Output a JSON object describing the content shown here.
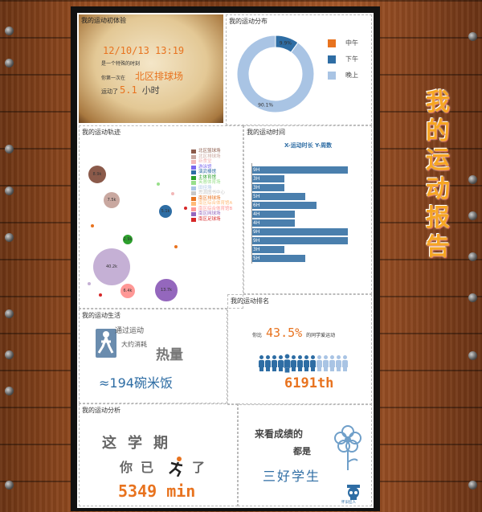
{
  "side_title": [
    "我",
    "的",
    "运",
    "动",
    "报",
    "告"
  ],
  "first": {
    "title": "我的运动初体验",
    "datetime": "12/10/13  13:19",
    "line1": "是一个特殊的时刻",
    "line2_pre": "你第一次在",
    "place": "北区排球场",
    "line3_pre": "运动了",
    "hours_value": "5.1",
    "hours_unit": "小时"
  },
  "distribution": {
    "title": "我的运动分布",
    "legend": [
      {
        "label": "中午",
        "color": "#e8731f"
      },
      {
        "label": "下午",
        "color": "#2e6da4"
      },
      {
        "label": "晚上",
        "color": "#a9c4e4"
      }
    ],
    "chart_data": {
      "type": "pie",
      "categories": [
        "中午",
        "下午",
        "晚上"
      ],
      "values": [
        0.0,
        9.9,
        90.1
      ],
      "slice_labels": [
        "",
        "9.9%",
        "90.1%"
      ],
      "colors": [
        "#e8731f",
        "#2e6da4",
        "#a9c4e4"
      ],
      "legend_position": "right"
    }
  },
  "track": {
    "title": "我的运动轨迹",
    "legend": [
      {
        "label": "北区篮球场",
        "color": "#8b5a4a"
      },
      {
        "label": "北区排球场",
        "color": "#c9a8a0"
      },
      {
        "label": "新食堂",
        "color": "#f2b7b7"
      },
      {
        "label": "游泳馆",
        "color": "#7b68ee"
      },
      {
        "label": "演武楼馆",
        "color": "#2e6da4"
      },
      {
        "label": "主体育馆",
        "color": "#2ca02c"
      },
      {
        "label": "芙蓉体育场",
        "color": "#98df8a"
      },
      {
        "label": "田径场",
        "color": "#a9c4e4"
      },
      {
        "label": "思源图书中心",
        "color": "#c7c7c7"
      },
      {
        "label": "南区排球场",
        "color": "#e8731f"
      },
      {
        "label": "南区综合体育馆A",
        "color": "#ffbb78"
      },
      {
        "label": "南区综合体育馆B",
        "color": "#ff9896"
      },
      {
        "label": "南区网球场",
        "color": "#9467bd"
      },
      {
        "label": "南区足球场",
        "color": "#d62728"
      }
    ],
    "bubbles": [
      {
        "label": "8.9k",
        "color": "#8b5a4a",
        "value": 8.9
      },
      {
        "label": "7.5k",
        "color": "#c9a8a0",
        "value": 7.5
      },
      {
        "label": "5.1k",
        "color": "#2e6da4",
        "value": 5.1
      },
      {
        "label": "2.9k",
        "color": "#2ca02c",
        "value": 2.9
      },
      {
        "label": "40.2k",
        "color": "#c5b0d5",
        "value": 40.2
      },
      {
        "label": "6.4k",
        "color": "#ff9896",
        "value": 6.4
      },
      {
        "label": "13.7k",
        "color": "#9467bd",
        "value": 13.7
      },
      {
        "label": "",
        "color": "#e8731f",
        "value": 0.3
      },
      {
        "label": "",
        "color": "#f2b7b7",
        "value": 0.3
      },
      {
        "label": "",
        "color": "#98df8a",
        "value": 0.3
      },
      {
        "label": "",
        "color": "#d62728",
        "value": 0.3
      },
      {
        "label": "",
        "color": "#e8731f",
        "value": 0.3
      },
      {
        "label": "",
        "color": "#c5b0d5",
        "value": 0.3
      },
      {
        "label": "",
        "color": "#d62728",
        "value": 0.3
      }
    ]
  },
  "time": {
    "title": "我的运动时间",
    "axis_caption": "X-运动时长  Y-周数",
    "chart_data": {
      "type": "bar",
      "orientation": "horizontal",
      "categories": [
        "1",
        "2",
        "3",
        "4",
        "5",
        "6",
        "7",
        "8",
        "9",
        "10",
        "11"
      ],
      "values": [
        9,
        3,
        3,
        5,
        6,
        4,
        4,
        9,
        9,
        3,
        5
      ],
      "labels": [
        "9H",
        "3H",
        "3H",
        "5H",
        "6H",
        "4H",
        "4H",
        "9H",
        "9H",
        "3H",
        "5H"
      ],
      "xlim": [
        0,
        9.5
      ],
      "color": "#4a7fad"
    }
  },
  "life": {
    "title": "我的运动生活",
    "line1": "通过运动",
    "line2": "大约消耗",
    "heat": "热量",
    "equiv": "≈194碗米饭"
  },
  "rank": {
    "title": "我的运动排名",
    "prefix": "你比",
    "percent": "43.5%",
    "suffix": "的同学爱运动",
    "rank": "6191th",
    "people_total": 14,
    "people_highlight_index": 4,
    "people_color": "#2e6da4",
    "people_light": "#a9c4e4"
  },
  "analysis": {
    "title": "我的运动分析",
    "line1": "这学期",
    "line2": "你已",
    "line2_end": "了",
    "minutes": "5349 min",
    "right_line1": "来看成绩的",
    "right_line2": "都是",
    "right_line3": "三好学生",
    "badge": "怀旧狂人"
  }
}
